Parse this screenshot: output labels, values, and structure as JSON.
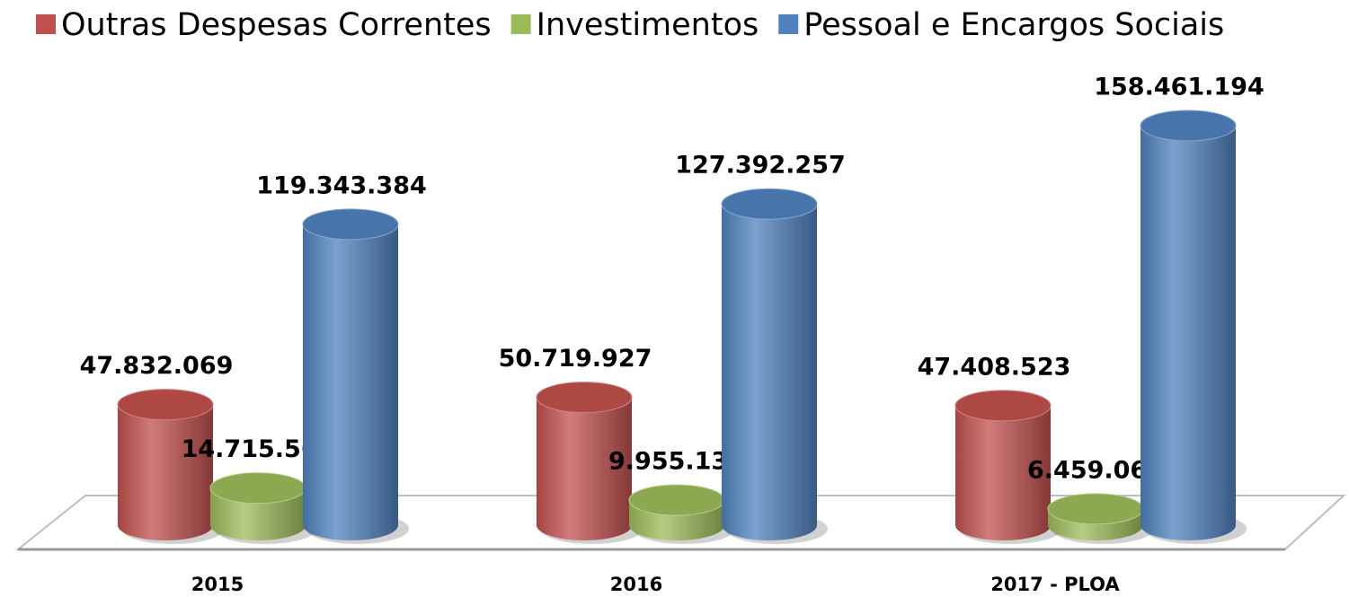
{
  "chart_data": {
    "type": "bar3d",
    "categories": [
      "2015",
      "2016",
      "2017 - PLOA"
    ],
    "series": [
      {
        "name": "Outras Despesas Correntes",
        "color": "#c0504d",
        "values": [
          47832069,
          50719927,
          47408523
        ],
        "value_labels": [
          "47.832.069",
          "50.719.927",
          "47.408.523"
        ]
      },
      {
        "name": "Investimentos",
        "color": "#9bbb59",
        "values": [
          14715566,
          9955133,
          6459064
        ],
        "value_labels": [
          "14.715.566",
          "9.955.133",
          "6.459.064"
        ]
      },
      {
        "name": "Pessoal e Encargos Sociais",
        "color": "#4f81bd",
        "values": [
          119343384,
          127392257,
          158461194
        ],
        "value_labels": [
          "119.343.384",
          "127.392.257",
          "158.461.194"
        ]
      }
    ],
    "legend": "top"
  }
}
